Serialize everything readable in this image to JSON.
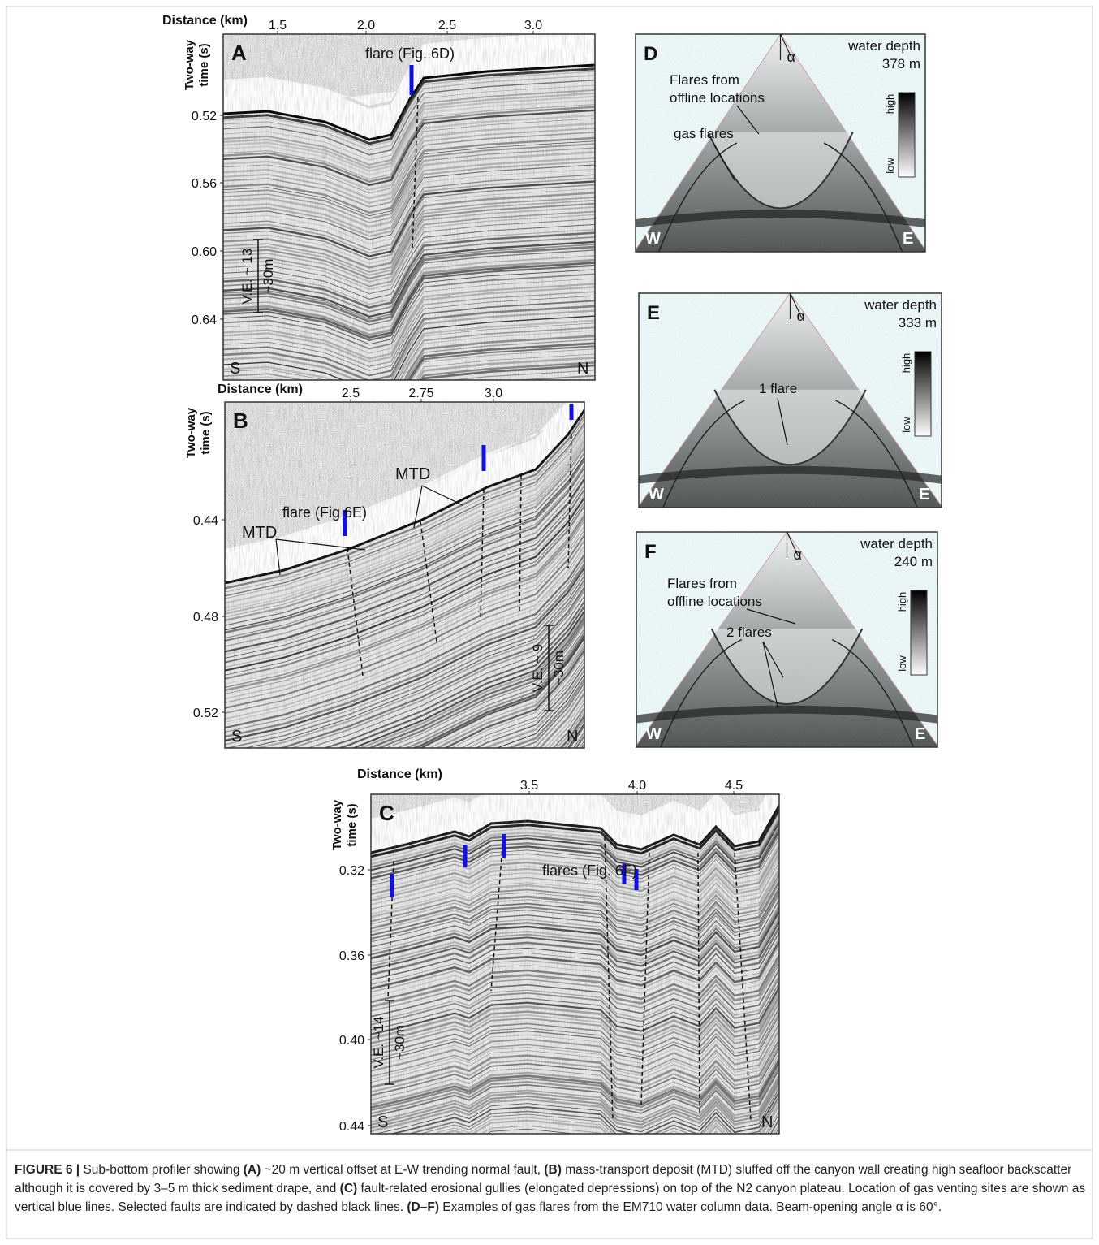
{
  "panels": [
    {
      "letter": "A",
      "x_label": "Distance (km)",
      "y_label": [
        "Two-way",
        "time (s)"
      ],
      "x_ticks": [
        "1.5",
        "2.0",
        "2.5",
        "3.0"
      ],
      "y_ticks": [
        "0.52",
        "0.56",
        "0.60",
        "0.64"
      ],
      "annotations": [
        "flare (Fig. 6D)"
      ],
      "scale_bar": [
        "V.E. ~ 13",
        "~30m"
      ],
      "left": "S",
      "right": "N"
    },
    {
      "letter": "B",
      "x_label": "Distance (km)",
      "y_label": [
        "Two-way",
        "time (s)"
      ],
      "x_ticks": [
        "2.5",
        "2.75",
        "3.0"
      ],
      "y_ticks": [
        "0.44",
        "0.48",
        "0.52"
      ],
      "annotations": [
        "flare (Fig 6E)",
        "MTD",
        "MTD"
      ],
      "scale_bar": [
        "V.E. ~ 9",
        "~30m"
      ],
      "left": "S",
      "right": "N"
    },
    {
      "letter": "C",
      "x_label": "Distance (km)",
      "y_label": [
        "Two-way",
        "time (s)"
      ],
      "x_ticks": [
        "3.5",
        "4.0",
        "4.5"
      ],
      "y_ticks": [
        "0.32",
        "0.36",
        "0.40",
        "0.44"
      ],
      "annotations": [
        "flares (Fig. 6F)"
      ],
      "scale_bar": [
        "V.E. ~14",
        "~30m"
      ],
      "left": "S",
      "right": "N"
    }
  ],
  "flare_panels": [
    {
      "letter": "D",
      "depth_label": "water depth",
      "depth_value": "378 m",
      "angle": "α",
      "annotations": [
        "Flares from",
        "offline locations",
        "gas flares"
      ],
      "scale": [
        "high",
        "low"
      ],
      "left": "W",
      "right": "E"
    },
    {
      "letter": "E",
      "depth_label": "water depth",
      "depth_value": "333 m",
      "angle": "α",
      "annotations": [
        "1 flare"
      ],
      "scale": [
        "high",
        "low"
      ],
      "left": "W",
      "right": "E"
    },
    {
      "letter": "F",
      "depth_label": "water depth",
      "depth_value": "240 m",
      "angle": "α",
      "annotations": [
        "Flares from",
        "offline locations",
        "2 flares"
      ],
      "scale": [
        "high",
        "low"
      ],
      "left": "W",
      "right": "E"
    }
  ],
  "caption": [
    "FIGURE 6 |",
    "Sub-bottom profiler showing",
    "(A)",
    "~20 m vertical offset at E-W trending normal fault,",
    "(B)",
    "mass-transport deposit (MTD) sluffed off the canyon wall creating high seafloor backscatter although it is covered by 3–5 m thick sediment drape, and",
    "(C)",
    "fault-related erosional gullies (elongated depressions) on top of the N2 canyon plateau. Location of gas venting sites are shown as vertical blue lines. Selected faults are indicated by dashed black lines.",
    "(D–F)",
    "Examples of gas flares from the EM710 water column data. Beam-opening angle α is 60°."
  ]
}
